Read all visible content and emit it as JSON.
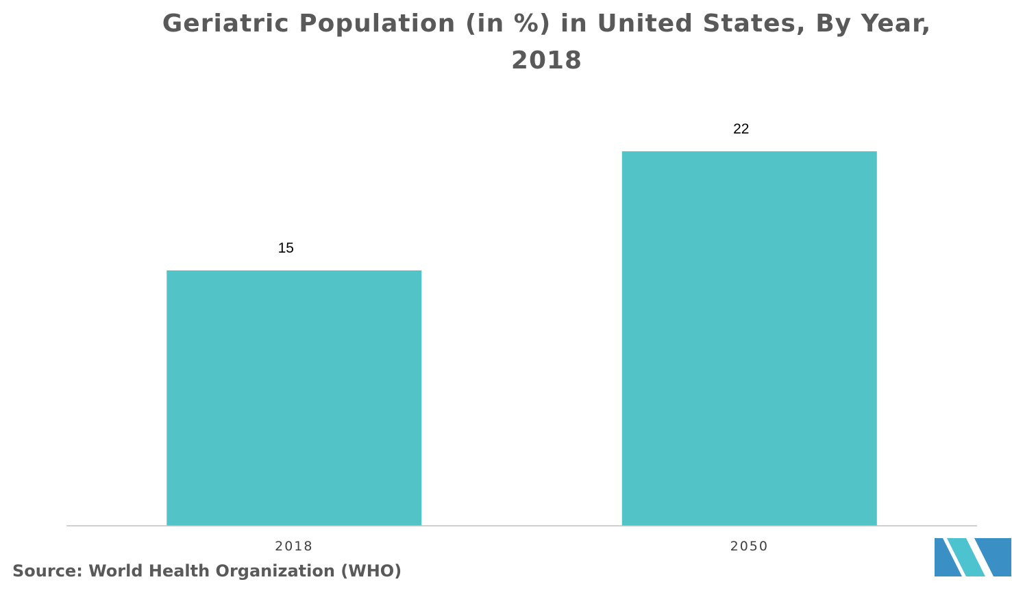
{
  "chart_data": {
    "type": "bar",
    "title": "Geriatric Population (in %) in United States, By Year, 2018",
    "categories": [
      "2018",
      "2050"
    ],
    "values": [
      15,
      22
    ],
    "data_labels": [
      "15",
      "22"
    ],
    "xlabel": "",
    "ylabel": "",
    "ylim": [
      0,
      22
    ],
    "grid": false,
    "legend": "none",
    "bar_color": "#52C4C7",
    "axis_color": "#BFBFBF"
  },
  "footer": {
    "source": "Source: World Health Organization (WHO)"
  },
  "brand": {
    "logo_icon": "mordor-intelligence-logo-icon",
    "colors": [
      "#3A8FC4",
      "#4DC3D0"
    ]
  }
}
